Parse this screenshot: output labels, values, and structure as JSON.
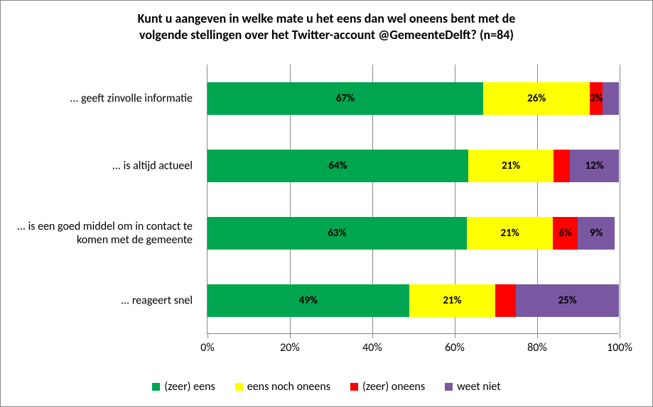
{
  "chart": {
    "type": "stacked-bar-horizontal",
    "title_line1": "Kunt u aangeven in welke mate u het eens dan wel oneens bent met de",
    "title_line2": "volgende stellingen over het Twitter-account @GemeenteDelft? (n=84)",
    "title_fontsize": 18,
    "title_fontweight": "bold",
    "label_fontsize": 16,
    "datalabel_fontsize": 15,
    "datalabel_fontweight": "bold",
    "background_color": "#ffffff",
    "border_color": "#888888",
    "grid_color": "#888888",
    "xlim": [
      0,
      100
    ],
    "xtick_step": 20,
    "xtick_suffix": "%",
    "xtick_labels": [
      "0%",
      "20%",
      "40%",
      "60%",
      "80%",
      "100%"
    ],
    "series": [
      {
        "key": "zeer_eens",
        "label": "(zeer) eens",
        "color": "#00a54f"
      },
      {
        "key": "noch",
        "label": "eens noch oneens",
        "color": "#feff00"
      },
      {
        "key": "zeer_oneens",
        "label": "(zeer) oneens",
        "color": "#fe0000"
      },
      {
        "key": "weet_niet",
        "label": "weet niet",
        "color": "#7a58a1"
      }
    ],
    "categories": [
      {
        "label": "... geeft zinvolle informatie",
        "segments": [
          {
            "value": 67,
            "display": "67%",
            "show": true
          },
          {
            "value": 26,
            "display": "26%",
            "show": true
          },
          {
            "value": 3,
            "display": "3%",
            "show": true
          },
          {
            "value": 4,
            "display": "",
            "show": false
          }
        ]
      },
      {
        "label": "... is altijd actueel",
        "segments": [
          {
            "value": 64,
            "display": "64%",
            "show": true
          },
          {
            "value": 21,
            "display": "21%",
            "show": true
          },
          {
            "value": 4,
            "display": "",
            "show": false
          },
          {
            "value": 12,
            "display": "12%",
            "show": true
          }
        ]
      },
      {
        "label": "... is een goed middel om in contact te komen met de gemeente",
        "segments": [
          {
            "value": 63,
            "display": "63%",
            "show": true
          },
          {
            "value": 21,
            "display": "21%",
            "show": true
          },
          {
            "value": 6,
            "display": "6%",
            "show": true
          },
          {
            "value": 9,
            "display": "9%",
            "show": true
          }
        ]
      },
      {
        "label": "... reageert snel",
        "segments": [
          {
            "value": 49,
            "display": "49%",
            "show": true
          },
          {
            "value": 21,
            "display": "21%",
            "show": true
          },
          {
            "value": 5,
            "display": "",
            "show": false
          },
          {
            "value": 25,
            "display": "25%",
            "show": true
          }
        ]
      }
    ]
  }
}
